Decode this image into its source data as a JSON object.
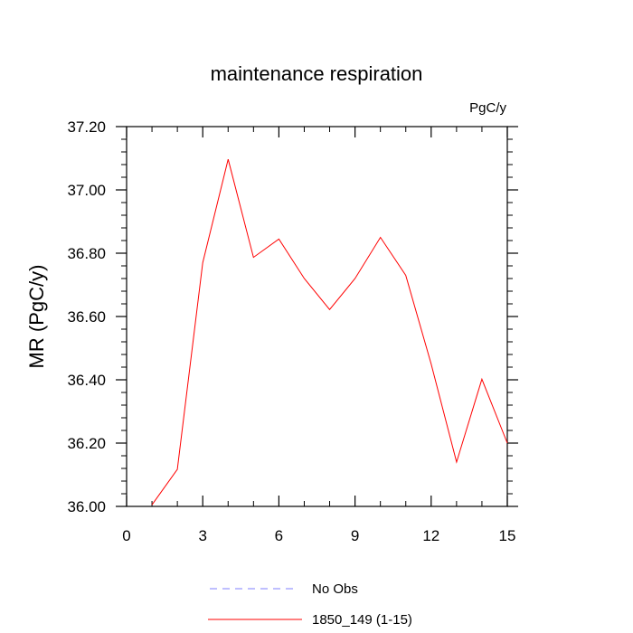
{
  "chart_data": {
    "type": "line",
    "title": "maintenance respiration",
    "units_label": "PgC/y",
    "xlabel": "",
    "ylabel": "MR  (PgC/y)",
    "xlim": [
      0,
      15
    ],
    "ylim": [
      36.0,
      37.2
    ],
    "x_ticks": [
      0,
      3,
      6,
      9,
      12,
      15
    ],
    "x_tick_labels": [
      "0",
      "3",
      "6",
      "9",
      "12",
      "15"
    ],
    "y_ticks": [
      36.0,
      36.2,
      36.4,
      36.6,
      36.8,
      37.0,
      37.2
    ],
    "y_tick_labels": [
      "36.00",
      "36.20",
      "36.40",
      "36.60",
      "36.80",
      "37.00",
      "37.20"
    ],
    "grid": false,
    "legend_position": "bottom",
    "series": [
      {
        "name": "No Obs",
        "color": "#7f7fff",
        "style": "dashed",
        "x": [],
        "values": []
      },
      {
        "name": "1850_149 (1-15)",
        "color": "#ff0000",
        "style": "solid",
        "x": [
          1,
          2,
          3,
          4,
          5,
          6,
          7,
          8,
          9,
          10,
          11,
          12,
          13,
          14,
          15
        ],
        "values": [
          36.005,
          36.117,
          36.77,
          37.097,
          36.787,
          36.845,
          36.72,
          36.622,
          36.72,
          36.85,
          36.73,
          36.45,
          36.14,
          36.402,
          36.2
        ]
      }
    ]
  }
}
